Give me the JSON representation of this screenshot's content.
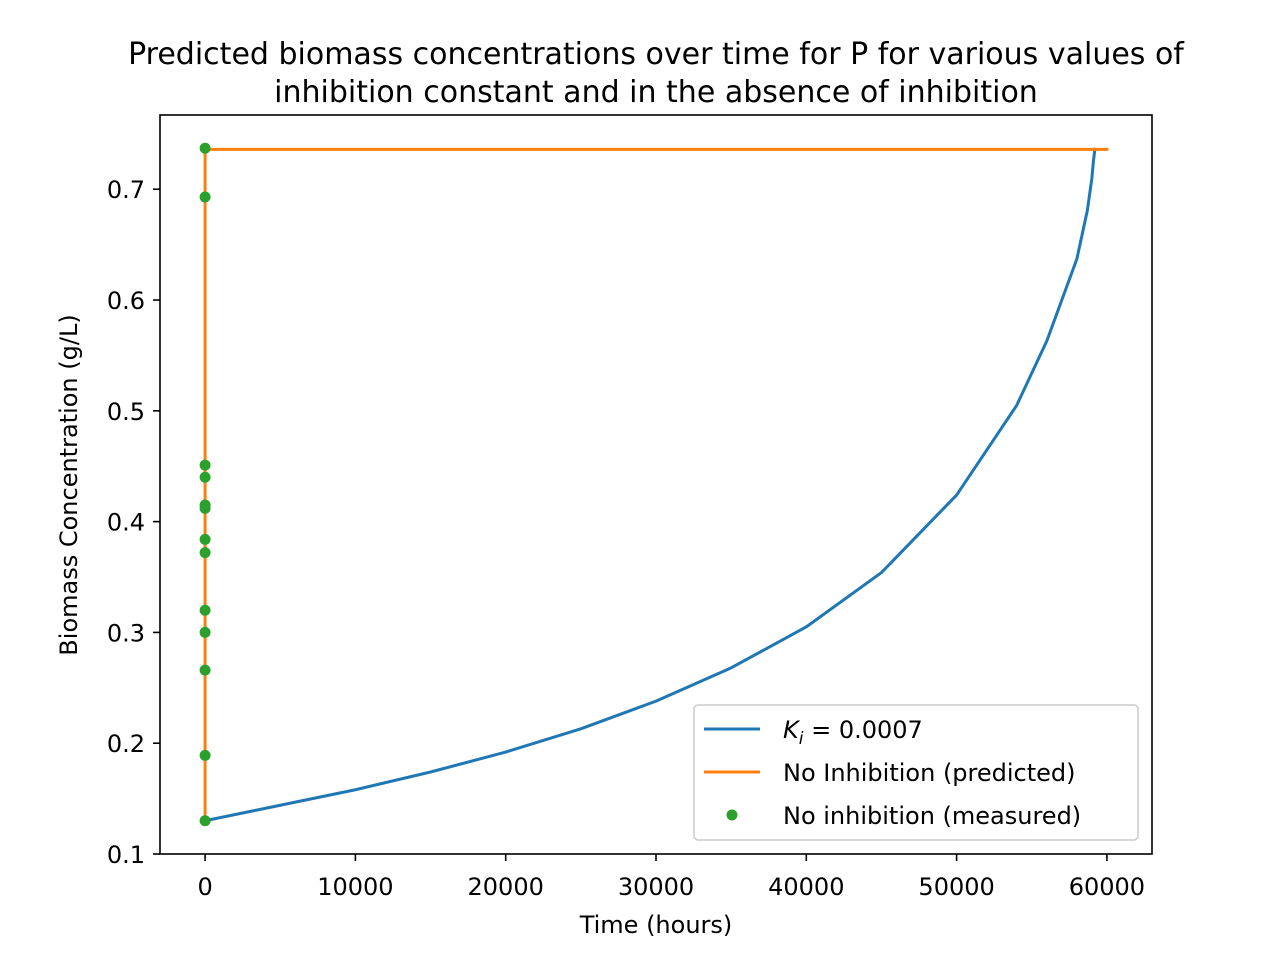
{
  "chart_data": {
    "type": "line",
    "title_line1": "Predicted biomass concentrations over time for P for various values of",
    "title_line2": "inhibition constant and in the absence of inhibition",
    "xlabel": "Time (hours)",
    "ylabel": "Biomass Concentration (g/L)",
    "xlim": [
      -3000,
      63000
    ],
    "ylim": [
      0.1,
      0.767
    ],
    "x_ticks": [
      0,
      10000,
      20000,
      30000,
      40000,
      50000,
      60000
    ],
    "y_ticks": [
      0.1,
      0.2,
      0.3,
      0.4,
      0.5,
      0.6,
      0.7
    ],
    "grid": false,
    "legend_position": "lower right",
    "series": [
      {
        "name_prefix": "K",
        "name_subscript": "i",
        "name_suffix": " = 0.0007",
        "kind": "line",
        "color": "#1f77b4",
        "x": [
          0,
          5000,
          10000,
          15000,
          20000,
          25000,
          30000,
          35000,
          40000,
          45000,
          50000,
          54000,
          56000,
          58000,
          58700,
          59000,
          59100,
          59200
        ],
        "y": [
          0.13,
          0.144,
          0.158,
          0.174,
          0.192,
          0.213,
          0.238,
          0.268,
          0.305,
          0.354,
          0.424,
          0.505,
          0.563,
          0.637,
          0.681,
          0.71,
          0.725,
          0.736
        ]
      },
      {
        "name": "No Inhibition (predicted)",
        "kind": "line",
        "color": "#ff7f0e",
        "x": [
          0,
          0,
          0,
          0,
          0,
          0,
          0,
          0,
          0,
          0,
          0,
          0,
          0,
          0,
          0,
          60000
        ],
        "y": [
          0.13,
          0.189,
          0.266,
          0.3,
          0.32,
          0.372,
          0.384,
          0.412,
          0.415,
          0.44,
          0.451,
          0.55,
          0.693,
          0.725,
          0.736,
          0.736
        ]
      },
      {
        "name": "No inhibition (measured)",
        "kind": "scatter",
        "color": "#2ca02c",
        "x": [
          0,
          0,
          0,
          0,
          0,
          0,
          0,
          0,
          0,
          0,
          0,
          0,
          0
        ],
        "y": [
          0.13,
          0.189,
          0.266,
          0.3,
          0.32,
          0.372,
          0.384,
          0.412,
          0.415,
          0.44,
          0.451,
          0.693,
          0.737
        ]
      }
    ]
  }
}
